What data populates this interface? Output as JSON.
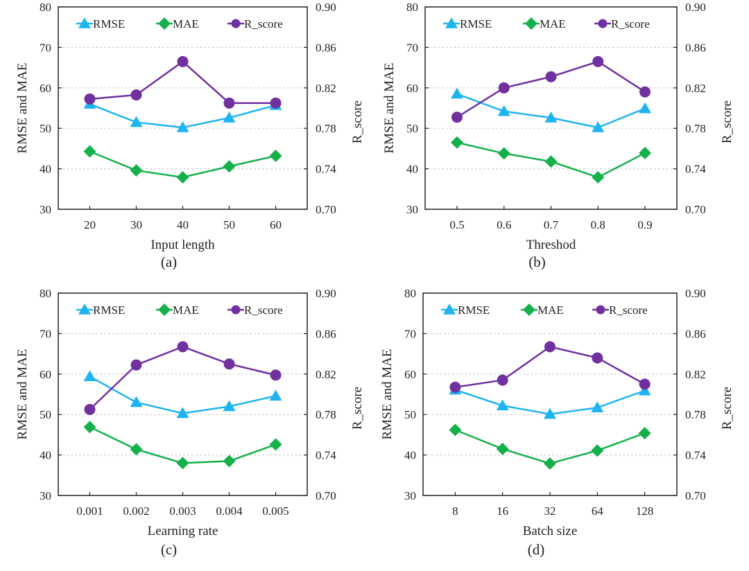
{
  "colors": {
    "RMSE": "#1FB4F0",
    "MAE": "#15B04A",
    "R_score": "#7030A0"
  },
  "chart_data": [
    {
      "type": "line",
      "panel": "(a)",
      "xlabel": "Input length",
      "ylabel": "RMSE and MAE",
      "y2label": "R_score",
      "categories": [
        "20",
        "30",
        "40",
        "50",
        "60"
      ],
      "ylim": [
        30,
        80
      ],
      "yticks": [
        "30",
        "40",
        "50",
        "60",
        "70",
        "80"
      ],
      "y2lim": [
        0.7,
        0.9
      ],
      "y2ticks": [
        "0.70",
        "0.74",
        "0.78",
        "0.82",
        "0.86",
        "0.90"
      ],
      "legend": [
        "RMSE",
        "MAE",
        "R_score"
      ],
      "legend_position": "top",
      "grid": "horizontal dashed",
      "series": [
        {
          "name": "RMSE",
          "axis": "left",
          "marker": "triangle",
          "values": [
            56.0,
            51.5,
            50.2,
            52.6,
            55.7
          ]
        },
        {
          "name": "MAE",
          "axis": "left",
          "marker": "diamond",
          "values": [
            44.3,
            39.6,
            37.9,
            40.6,
            43.2
          ]
        },
        {
          "name": "R_score",
          "axis": "right",
          "marker": "circle",
          "values": [
            0.809,
            0.813,
            0.846,
            0.805,
            0.805
          ]
        }
      ]
    },
    {
      "type": "line",
      "panel": "(b)",
      "xlabel": "Threshod",
      "ylabel": "RMSE and MAE",
      "y2label": "R_score",
      "categories": [
        "0.5",
        "0.6",
        "0.7",
        "0.8",
        "0.9"
      ],
      "ylim": [
        30,
        80
      ],
      "yticks": [
        "30",
        "40",
        "50",
        "60",
        "70",
        "80"
      ],
      "y2lim": [
        0.7,
        0.9
      ],
      "y2ticks": [
        "0.70",
        "0.74",
        "0.78",
        "0.82",
        "0.86",
        "0.90"
      ],
      "legend": [
        "RMSE",
        "MAE",
        "R_score"
      ],
      "legend_position": "top",
      "grid": "horizontal dashed",
      "series": [
        {
          "name": "RMSE",
          "axis": "left",
          "marker": "triangle",
          "values": [
            58.5,
            54.2,
            52.6,
            50.2,
            54.9
          ]
        },
        {
          "name": "MAE",
          "axis": "left",
          "marker": "diamond",
          "values": [
            46.5,
            43.8,
            41.8,
            37.9,
            43.9
          ]
        },
        {
          "name": "R_score",
          "axis": "right",
          "marker": "circle",
          "values": [
            0.791,
            0.82,
            0.831,
            0.846,
            0.816
          ]
        }
      ]
    },
    {
      "type": "line",
      "panel": "(c)",
      "xlabel": "Learning rate",
      "ylabel": "RMSE and MAE",
      "y2label": "R_score",
      "categories": [
        "0.001",
        "0.002",
        "0.003",
        "0.004",
        "0.005"
      ],
      "ylim": [
        30,
        80
      ],
      "yticks": [
        "30",
        "40",
        "50",
        "60",
        "70",
        "80"
      ],
      "y2lim": [
        0.7,
        0.9
      ],
      "y2ticks": [
        "0.70",
        "0.74",
        "0.78",
        "0.82",
        "0.86",
        "0.90"
      ],
      "legend": [
        "RMSE",
        "MAE",
        "R_score"
      ],
      "legend_position": "top",
      "grid": "horizontal dashed",
      "series": [
        {
          "name": "RMSE",
          "axis": "left",
          "marker": "triangle",
          "values": [
            59.4,
            53.0,
            50.3,
            52.0,
            54.6
          ]
        },
        {
          "name": "MAE",
          "axis": "left",
          "marker": "diamond",
          "values": [
            46.9,
            41.4,
            38.0,
            38.5,
            42.6
          ]
        },
        {
          "name": "R_score",
          "axis": "right",
          "marker": "circle",
          "values": [
            0.785,
            0.829,
            0.847,
            0.83,
            0.819
          ]
        }
      ]
    },
    {
      "type": "line",
      "panel": "(d)",
      "xlabel": "Batch size",
      "ylabel": "RMSE and MAE",
      "y2label": "R_score",
      "categories": [
        "8",
        "16",
        "32",
        "64",
        "128"
      ],
      "ylim": [
        30,
        80
      ],
      "yticks": [
        "30",
        "40",
        "50",
        "60",
        "70",
        "80"
      ],
      "y2lim": [
        0.7,
        0.9
      ],
      "y2ticks": [
        "0.70",
        "0.74",
        "0.78",
        "0.82",
        "0.86",
        "0.90"
      ],
      "legend": [
        "RMSE",
        "MAE",
        "R_score"
      ],
      "legend_position": "top",
      "grid": "horizontal dashed",
      "series": [
        {
          "name": "RMSE",
          "axis": "left",
          "marker": "triangle",
          "values": [
            56.1,
            52.2,
            50.1,
            51.7,
            55.9
          ]
        },
        {
          "name": "MAE",
          "axis": "left",
          "marker": "diamond",
          "values": [
            46.2,
            41.5,
            37.9,
            41.1,
            45.4
          ]
        },
        {
          "name": "R_score",
          "axis": "right",
          "marker": "circle",
          "values": [
            0.807,
            0.814,
            0.847,
            0.836,
            0.81
          ]
        }
      ]
    }
  ]
}
